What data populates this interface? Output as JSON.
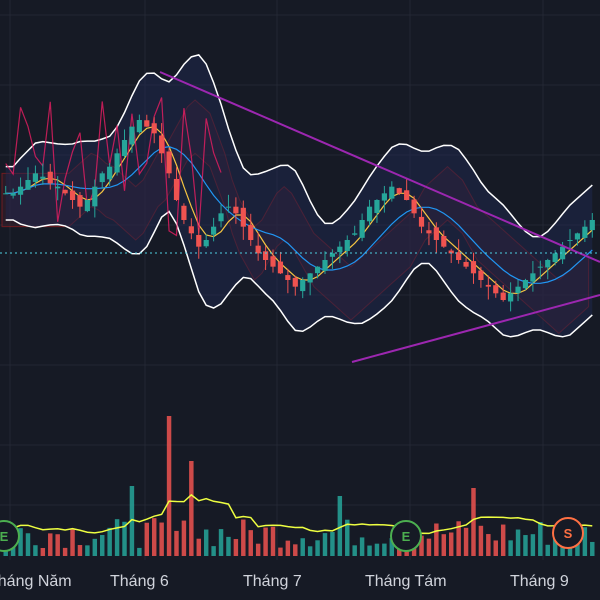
{
  "chart_data": {
    "type": "candlestick",
    "title": "",
    "x_axis": {
      "labels": [
        "Tháng Năm",
        "Tháng 6",
        "Tháng 7",
        "Tháng Tám",
        "Tháng 9"
      ]
    },
    "colors": {
      "background": "#161a25",
      "grid": "#232733",
      "up_candle": "#26a69a",
      "down_candle": "#ef5350",
      "bollinger": "#ffffff",
      "trendline": "#9c27b0",
      "ma_fast": "#f5c542",
      "ma_slow": "#2196f3",
      "ichimoku_span": "#b71c1c",
      "rsi_like": "#e91e63",
      "volume_ma": "#eeff41",
      "dotted_price_line": "#4dd0e1"
    },
    "indicators": [
      "Bollinger Bands",
      "Ichimoku Cloud",
      "Moving Averages",
      "Volume",
      "Volume MA"
    ],
    "event_badges": [
      {
        "label": "E",
        "color": "#4caf50"
      },
      {
        "label": "E",
        "color": "#4caf50"
      },
      {
        "label": "S",
        "color": "#ff7043"
      }
    ],
    "candles_close_estimate": [
      250,
      250,
      252,
      254,
      256,
      255,
      253,
      252,
      250,
      248,
      246,
      248,
      252,
      256,
      258,
      262,
      266,
      270,
      272,
      270,
      268,
      262,
      256,
      248,
      242,
      238,
      234,
      236,
      240,
      244,
      246,
      244,
      240,
      236,
      232,
      230,
      228,
      226,
      224,
      222,
      224,
      226,
      228,
      230,
      232,
      234,
      236,
      238,
      242,
      246,
      248,
      250,
      252,
      250,
      248,
      244,
      240,
      238,
      236,
      234,
      232,
      230,
      228,
      226,
      224,
      222,
      220,
      218,
      220,
      222,
      224,
      226,
      228,
      230,
      232,
      234,
      236,
      238,
      240,
      242
    ],
    "grid": true
  }
}
